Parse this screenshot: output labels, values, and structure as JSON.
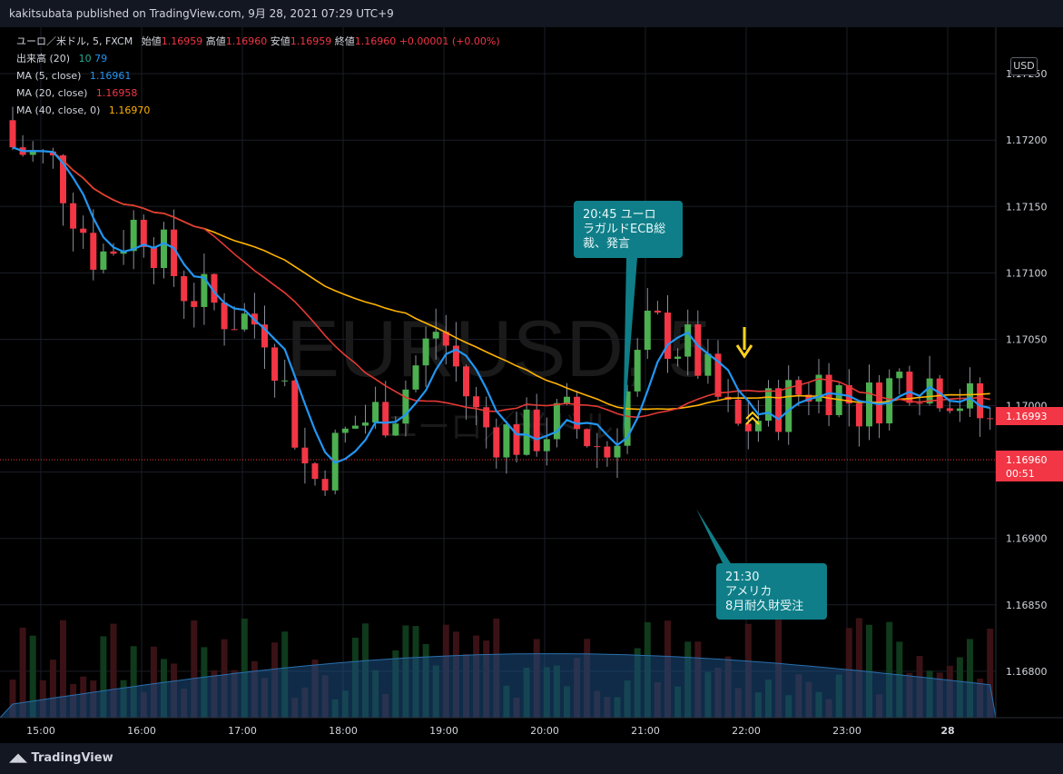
{
  "header": {
    "publisher": "kakitsubata published on TradingView.com, 9月 28, 2021 07:29 UTC+9"
  },
  "legend": {
    "symbol": "ユーロ／米ドル, 5, FXCM",
    "open_label": "始値",
    "open": "1.16959",
    "high_label": "高値",
    "high": "1.16960",
    "low_label": "安値",
    "low": "1.16959",
    "close_label": "終値",
    "close": "1.16960",
    "change": "+0.00001 (+0.00%)",
    "volume_label": "出来高 (20)",
    "volume_a": "10",
    "volume_b": "79",
    "ma5_label": "MA (5, close)",
    "ma5": "1.16961",
    "ma20_label": "MA (20, close)",
    "ma20": "1.16958",
    "ma40_label": "MA (40, close, 0)",
    "ma40": "1.16970"
  },
  "watermark": {
    "symbol": "EURUSD, 5",
    "name": "ユーロ／米ドル"
  },
  "currency_button": "USD",
  "price_tags": {
    "ma_value": "1.16993",
    "last_price": "1.16960",
    "countdown": "00:51"
  },
  "annotations": [
    {
      "text": "20:45 ユーロ\nラガルドECB総\n裁、発言"
    },
    {
      "text": "21:30\nアメリカ\n8月耐久財受注"
    }
  ],
  "footer": {
    "brand": "TradingView"
  },
  "colors": {
    "up": "#4caf50",
    "down": "#f23645",
    "ma5": "#2196f3",
    "ma20": "#e53935",
    "ma40": "#ffb300",
    "callout": "#0f7e88"
  },
  "chart_data": {
    "type": "candlestick",
    "y_ticks": [
      "1.17250",
      "1.17200",
      "1.17150",
      "1.17100",
      "1.17050",
      "1.17000",
      "1.16950",
      "1.16900",
      "1.16850",
      "1.16800"
    ],
    "ylim": [
      1.16765,
      1.17285
    ],
    "x_ticks": [
      "15:00",
      "16:00",
      "17:00",
      "18:00",
      "19:00",
      "20:00",
      "21:00",
      "22:00",
      "23:00",
      "28"
    ],
    "grid": true,
    "anchors": [
      [
        1.1721,
        1.1718
      ],
      [
        1.1716,
        1.172
      ],
      [
        1.1706,
        1.1716
      ],
      [
        1.1713,
        1.1715
      ],
      [
        1.1708,
        1.171
      ],
      [
        1.1702,
        1.1712
      ],
      [
        1.1699,
        1.1713
      ],
      [
        1.1688,
        1.17
      ],
      [
        1.1692,
        1.1705
      ],
      [
        1.1698,
        1.1702
      ],
      [
        1.1704,
        1.1708
      ],
      [
        1.1691,
        1.1706
      ],
      [
        1.1695,
        1.17
      ],
      [
        1.1696,
        1.1702
      ],
      [
        1.1698,
        1.1695
      ],
      [
        1.1705,
        1.1707
      ],
      [
        1.1702,
        1.1706
      ],
      [
        1.1696,
        1.17
      ],
      [
        1.1698,
        1.1702
      ],
      [
        1.1699,
        1.1705
      ],
      [
        1.16995,
        1.17
      ],
      [
        1.1703,
        1.1702
      ],
      [
        1.17,
        1.1703
      ],
      [
        1.1697,
        1.17
      ]
    ]
  }
}
